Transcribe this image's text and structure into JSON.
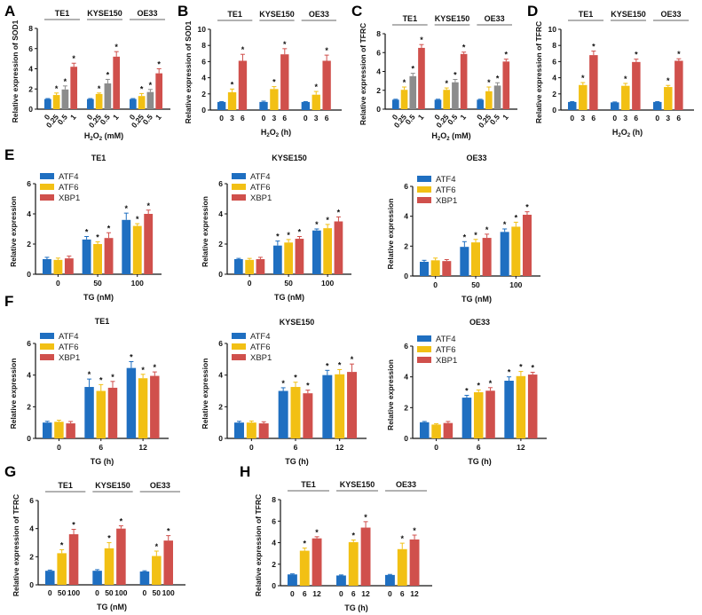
{
  "colors": {
    "blue": "#1f6fc1",
    "yellow": "#f2c014",
    "gray": "#8c8c8c",
    "red": "#d0504c"
  },
  "chart_data": [
    {
      "id": "A",
      "type": "bar",
      "panel_label": "A",
      "ylabel": "Relative expression of SOD1",
      "xlabel_main": "H",
      "xlabel_sub": "2",
      "xlabel_rest": "O",
      "xlabel_sub2": "2",
      "xlabel_tail": " (mM)",
      "ylim": [
        0,
        8
      ],
      "yticks": [
        0,
        2,
        4,
        6,
        8
      ],
      "rotated_ticks": true,
      "groups": [
        "TE1",
        "KYSE150",
        "OE33"
      ],
      "categories": [
        "0",
        "0.25",
        "0.5",
        "1"
      ],
      "bar_colors": [
        "blue",
        "yellow",
        "gray",
        "red"
      ],
      "values": [
        [
          1.0,
          1.4,
          1.95,
          4.2
        ],
        [
          1.0,
          1.5,
          2.55,
          5.2
        ],
        [
          1.0,
          1.3,
          1.7,
          3.55
        ]
      ],
      "errors": [
        [
          0.05,
          0.2,
          0.35,
          0.35
        ],
        [
          0.05,
          0.1,
          0.4,
          0.5
        ],
        [
          0.05,
          0.25,
          0.25,
          0.45
        ]
      ],
      "significant": [
        [
          false,
          true,
          true,
          true
        ],
        [
          false,
          true,
          true,
          true
        ],
        [
          false,
          true,
          true,
          true
        ]
      ]
    },
    {
      "id": "B",
      "type": "bar",
      "panel_label": "B",
      "ylabel": "Relative expression of SOD1",
      "xlabel_main": "H",
      "xlabel_sub": "2",
      "xlabel_rest": "O",
      "xlabel_sub2": "2",
      "xlabel_tail": " (h)",
      "ylim": [
        0,
        10
      ],
      "yticks": [
        0,
        2,
        4,
        6,
        8,
        10
      ],
      "rotated_ticks": false,
      "groups": [
        "TE1",
        "KYSE150",
        "OE33"
      ],
      "categories": [
        "0",
        "3",
        "6"
      ],
      "bar_colors": [
        "blue",
        "yellow",
        "red"
      ],
      "values": [
        [
          1.0,
          2.2,
          6.1
        ],
        [
          1.0,
          2.6,
          6.9
        ],
        [
          1.0,
          1.9,
          6.1
        ]
      ],
      "errors": [
        [
          0.05,
          0.4,
          0.8
        ],
        [
          0.1,
          0.3,
          0.7
        ],
        [
          0.05,
          0.4,
          0.7
        ]
      ],
      "significant": [
        [
          false,
          true,
          true
        ],
        [
          false,
          true,
          true
        ],
        [
          false,
          true,
          true
        ]
      ]
    },
    {
      "id": "C",
      "type": "bar",
      "panel_label": "C",
      "ylabel": "Relative expression of TFRC",
      "xlabel_main": "H",
      "xlabel_sub": "2",
      "xlabel_rest": "O",
      "xlabel_sub2": "2",
      "xlabel_tail": " (mM)",
      "ylim": [
        0,
        8
      ],
      "yticks": [
        0,
        2,
        4,
        6,
        8
      ],
      "rotated_ticks": true,
      "groups": [
        "TE1",
        "KYSE150",
        "OE33"
      ],
      "categories": [
        "0",
        "0.25",
        "0.5",
        "1"
      ],
      "bar_colors": [
        "blue",
        "yellow",
        "gray",
        "red"
      ],
      "values": [
        [
          1.0,
          2.05,
          3.5,
          6.5
        ],
        [
          1.0,
          2.05,
          2.85,
          5.85
        ],
        [
          1.0,
          1.9,
          2.5,
          5.05
        ]
      ],
      "errors": [
        [
          0.05,
          0.3,
          0.3,
          0.35
        ],
        [
          0.05,
          0.2,
          0.3,
          0.2
        ],
        [
          0.05,
          0.45,
          0.3,
          0.25
        ]
      ],
      "significant": [
        [
          false,
          true,
          true,
          true
        ],
        [
          false,
          true,
          true,
          true
        ],
        [
          false,
          true,
          true,
          true
        ]
      ]
    },
    {
      "id": "D",
      "type": "bar",
      "panel_label": "D",
      "ylabel": "Relative expression of TFRC",
      "xlabel_main": "H",
      "xlabel_sub": "2",
      "xlabel_rest": "O",
      "xlabel_sub2": "2",
      "xlabel_tail": " (h)",
      "ylim": [
        0,
        10
      ],
      "yticks": [
        0,
        2,
        4,
        6,
        8,
        10
      ],
      "rotated_ticks": false,
      "groups": [
        "TE1",
        "KYSE150",
        "OE33"
      ],
      "categories": [
        "0",
        "3",
        "6"
      ],
      "bar_colors": [
        "blue",
        "yellow",
        "red"
      ],
      "values": [
        [
          1.0,
          3.1,
          6.8
        ],
        [
          0.95,
          3.0,
          5.95
        ],
        [
          1.0,
          2.85,
          6.1
        ]
      ],
      "errors": [
        [
          0.05,
          0.3,
          0.5
        ],
        [
          0.05,
          0.3,
          0.35
        ],
        [
          0.05,
          0.2,
          0.25
        ]
      ],
      "significant": [
        [
          false,
          true,
          true
        ],
        [
          false,
          true,
          true
        ],
        [
          false,
          true,
          true
        ]
      ]
    },
    {
      "id": "E-TE1",
      "type": "bar",
      "panel_label": "E",
      "title": "TE1",
      "ylabel": "Relative expression",
      "xlabel": "TG (nM)",
      "ylim": [
        0,
        6
      ],
      "yticks": [
        0,
        2,
        4,
        6
      ],
      "categories": [
        "0",
        "50",
        "100"
      ],
      "legend": [
        "ATF4",
        "ATF6",
        "XBP1"
      ],
      "legend_position": "top-left",
      "series": [
        {
          "name": "ATF4",
          "color": "blue",
          "values": [
            1.0,
            2.3,
            3.6
          ],
          "errors": [
            0.12,
            0.2,
            0.45
          ],
          "significant": [
            false,
            true,
            true
          ]
        },
        {
          "name": "ATF6",
          "color": "yellow",
          "values": [
            0.95,
            2.0,
            3.2
          ],
          "errors": [
            0.12,
            0.15,
            0.15
          ],
          "significant": [
            false,
            true,
            true
          ]
        },
        {
          "name": "XBP1",
          "color": "red",
          "values": [
            1.05,
            2.4,
            4.0
          ],
          "errors": [
            0.15,
            0.35,
            0.25
          ],
          "significant": [
            false,
            true,
            true
          ]
        }
      ]
    },
    {
      "id": "E-KYSE150",
      "type": "bar",
      "panel_label": "",
      "title": "KYSE150",
      "ylabel": "Relative expression",
      "xlabel": "TG (nM)",
      "ylim": [
        0,
        6
      ],
      "yticks": [
        0,
        2,
        4,
        6
      ],
      "categories": [
        "0",
        "50",
        "100"
      ],
      "legend": [
        "ATF4",
        "ATF6",
        "XBP1"
      ],
      "legend_position": "top-left",
      "series": [
        {
          "name": "ATF4",
          "color": "blue",
          "values": [
            1.0,
            1.9,
            2.9
          ],
          "errors": [
            0.05,
            0.3,
            0.1
          ],
          "significant": [
            false,
            true,
            true
          ]
        },
        {
          "name": "ATF6",
          "color": "yellow",
          "values": [
            0.95,
            2.1,
            3.05
          ],
          "errors": [
            0.1,
            0.2,
            0.25
          ],
          "significant": [
            false,
            true,
            true
          ]
        },
        {
          "name": "XBP1",
          "color": "red",
          "values": [
            1.0,
            2.35,
            3.5
          ],
          "errors": [
            0.12,
            0.15,
            0.3
          ],
          "significant": [
            false,
            true,
            true
          ]
        }
      ]
    },
    {
      "id": "E-OE33",
      "type": "bar",
      "panel_label": "",
      "title": "OE33",
      "ylabel": "Relative expression",
      "xlabel": "TG (nM)",
      "ylim": [
        0,
        6
      ],
      "yticks": [
        0,
        2,
        4,
        6
      ],
      "categories": [
        "0",
        "50",
        "100"
      ],
      "legend": [
        "ATF4",
        "ATF6",
        "XBP1"
      ],
      "legend_position": "top-left",
      "series": [
        {
          "name": "ATF4",
          "color": "blue",
          "values": [
            0.95,
            1.95,
            2.95
          ],
          "errors": [
            0.1,
            0.35,
            0.2
          ],
          "significant": [
            false,
            true,
            true
          ]
        },
        {
          "name": "ATF6",
          "color": "yellow",
          "values": [
            1.05,
            2.25,
            3.3
          ],
          "errors": [
            0.15,
            0.2,
            0.3
          ],
          "significant": [
            false,
            true,
            true
          ]
        },
        {
          "name": "XBP1",
          "color": "red",
          "values": [
            1.0,
            2.55,
            4.1
          ],
          "errors": [
            0.1,
            0.25,
            0.2
          ],
          "significant": [
            false,
            true,
            true
          ]
        }
      ]
    },
    {
      "id": "F-TE1",
      "type": "bar",
      "panel_label": "F",
      "title": "TE1",
      "ylabel": "Relative expression",
      "xlabel": "TG (h)",
      "ylim": [
        0,
        6
      ],
      "yticks": [
        0,
        2,
        4,
        6
      ],
      "categories": [
        "0",
        "6",
        "12"
      ],
      "legend": [
        "ATF4",
        "ATF6",
        "XBP1"
      ],
      "legend_position": "top-left",
      "series": [
        {
          "name": "ATF4",
          "color": "blue",
          "values": [
            1.0,
            3.25,
            4.45
          ],
          "errors": [
            0.08,
            0.5,
            0.4
          ],
          "significant": [
            false,
            true,
            true
          ]
        },
        {
          "name": "ATF6",
          "color": "yellow",
          "values": [
            1.05,
            3.0,
            3.8
          ],
          "errors": [
            0.1,
            0.4,
            0.25
          ],
          "significant": [
            false,
            true,
            true
          ]
        },
        {
          "name": "XBP1",
          "color": "red",
          "values": [
            0.95,
            3.2,
            3.95
          ],
          "errors": [
            0.12,
            0.4,
            0.25
          ],
          "significant": [
            false,
            true,
            true
          ]
        }
      ]
    },
    {
      "id": "F-KYSE150",
      "type": "bar",
      "panel_label": "",
      "title": "KYSE150",
      "ylabel": "Relative expression",
      "xlabel": "TG (h)",
      "ylim": [
        0,
        6
      ],
      "yticks": [
        0,
        2,
        4,
        6
      ],
      "categories": [
        "0",
        "6",
        "12"
      ],
      "legend": [
        "ATF4",
        "ATF6",
        "XBP1"
      ],
      "legend_position": "top-left",
      "series": [
        {
          "name": "ATF4",
          "color": "blue",
          "values": [
            1.0,
            3.0,
            4.0
          ],
          "errors": [
            0.08,
            0.2,
            0.3
          ],
          "significant": [
            false,
            true,
            true
          ]
        },
        {
          "name": "ATF6",
          "color": "yellow",
          "values": [
            1.0,
            3.25,
            4.05
          ],
          "errors": [
            0.1,
            0.3,
            0.3
          ],
          "significant": [
            false,
            true,
            true
          ]
        },
        {
          "name": "XBP1",
          "color": "red",
          "values": [
            0.95,
            2.85,
            4.2
          ],
          "errors": [
            0.1,
            0.2,
            0.5
          ],
          "significant": [
            false,
            true,
            true
          ]
        }
      ]
    },
    {
      "id": "F-OE33",
      "type": "bar",
      "panel_label": "",
      "title": "OE33",
      "ylabel": "Relative expression",
      "xlabel": "TG (h)",
      "ylim": [
        0,
        6
      ],
      "yticks": [
        0,
        2,
        4,
        6
      ],
      "categories": [
        "0",
        "6",
        "12"
      ],
      "legend": [
        "ATF4",
        "ATF6",
        "XBP1"
      ],
      "legend_position": "top-left",
      "series": [
        {
          "name": "ATF4",
          "color": "blue",
          "values": [
            1.05,
            2.65,
            3.75
          ],
          "errors": [
            0.05,
            0.15,
            0.25
          ],
          "significant": [
            false,
            true,
            true
          ]
        },
        {
          "name": "ATF6",
          "color": "yellow",
          "values": [
            0.9,
            3.0,
            4.05
          ],
          "errors": [
            0.05,
            0.15,
            0.3
          ],
          "significant": [
            false,
            true,
            true
          ]
        },
        {
          "name": "XBP1",
          "color": "red",
          "values": [
            1.0,
            3.1,
            4.15
          ],
          "errors": [
            0.1,
            0.2,
            0.15
          ],
          "significant": [
            false,
            true,
            true
          ]
        }
      ]
    },
    {
      "id": "G",
      "type": "bar",
      "panel_label": "G",
      "ylabel": "Relative expression of TFRC",
      "xlabel": "TG (nM)",
      "ylim": [
        0,
        6
      ],
      "yticks": [
        0,
        2,
        4,
        6
      ],
      "rotated_ticks": false,
      "groups": [
        "TE1",
        "KYSE150",
        "OE33"
      ],
      "categories": [
        "0",
        "50",
        "100"
      ],
      "bar_colors": [
        "blue",
        "yellow",
        "red"
      ],
      "values": [
        [
          1.0,
          2.25,
          3.6
        ],
        [
          1.0,
          2.6,
          4.0
        ],
        [
          0.95,
          2.05,
          3.15
        ]
      ],
      "errors": [
        [
          0.05,
          0.25,
          0.35
        ],
        [
          0.08,
          0.4,
          0.2
        ],
        [
          0.05,
          0.35,
          0.35
        ]
      ],
      "significant": [
        [
          false,
          true,
          true
        ],
        [
          false,
          true,
          true
        ],
        [
          false,
          true,
          true
        ]
      ]
    },
    {
      "id": "H",
      "type": "bar",
      "panel_label": "H",
      "ylabel": "Relative expression of TFRC",
      "xlabel": "TG (h)",
      "ylim": [
        0,
        8
      ],
      "yticks": [
        0,
        2,
        4,
        6,
        8
      ],
      "rotated_ticks": false,
      "groups": [
        "TE1",
        "KYSE150",
        "OE33"
      ],
      "categories": [
        "0",
        "6",
        "12"
      ],
      "bar_colors": [
        "blue",
        "yellow",
        "red"
      ],
      "values": [
        [
          1.05,
          3.25,
          4.4
        ],
        [
          0.95,
          4.05,
          5.4
        ],
        [
          1.0,
          3.4,
          4.3
        ]
      ],
      "errors": [
        [
          0.05,
          0.25,
          0.15
        ],
        [
          0.05,
          0.2,
          0.55
        ],
        [
          0.05,
          0.55,
          0.4
        ]
      ],
      "significant": [
        [
          false,
          true,
          true
        ],
        [
          false,
          true,
          true
        ],
        [
          false,
          true,
          true
        ]
      ]
    }
  ]
}
